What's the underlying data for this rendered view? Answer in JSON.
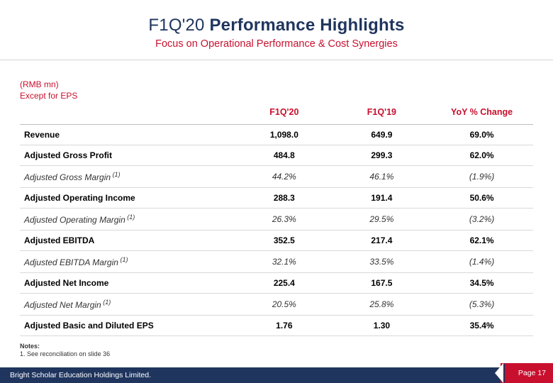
{
  "title": {
    "prefix": "F1Q'20 ",
    "main": "Performance Highlights"
  },
  "subtitle": "Focus on Operational Performance & Cost Synergies",
  "unit": {
    "line1": "(RMB mn)",
    "line2": "Except for EPS"
  },
  "columns": {
    "c1": "F1Q'20",
    "c2": "F1Q'19",
    "c3": "YoY % Change"
  },
  "rows": [
    {
      "style": "bold",
      "label": "Revenue",
      "v1": "1,098.0",
      "v2": "649.9",
      "v3": "69.0%"
    },
    {
      "style": "bold",
      "label": "Adjusted Gross Profit",
      "v1": "484.8",
      "v2": "299.3",
      "v3": "62.0%"
    },
    {
      "style": "ital",
      "label": "Adjusted Gross Margin",
      "sup": "(1)",
      "v1": "44.2%",
      "v2": "46.1%",
      "v3": "(1.9%)"
    },
    {
      "style": "bold",
      "label": "Adjusted Operating Income",
      "v1": "288.3",
      "v2": "191.4",
      "v3": "50.6%"
    },
    {
      "style": "ital",
      "label": "Adjusted Operating Margin",
      "sup": "(1)",
      "v1": "26.3%",
      "v2": "29.5%",
      "v3": "(3.2%)"
    },
    {
      "style": "bold",
      "label": "Adjusted EBITDA",
      "v1": "352.5",
      "v2": "217.4",
      "v3": "62.1%"
    },
    {
      "style": "ital",
      "label": "Adjusted EBITDA Margin",
      "sup": "(1)",
      "v1": "32.1%",
      "v2": "33.5%",
      "v3": "(1.4%)"
    },
    {
      "style": "bold",
      "label": "Adjusted Net Income",
      "v1": "225.4",
      "v2": "167.5",
      "v3": "34.5%"
    },
    {
      "style": "ital",
      "label": "Adjusted Net Margin",
      "sup": "(1)",
      "v1": "20.5%",
      "v2": "25.8%",
      "v3": "(5.3%)"
    },
    {
      "style": "bold",
      "label": "Adjusted Basic and Diluted EPS",
      "v1": "1.76",
      "v2": "1.30",
      "v3": "35.4%"
    }
  ],
  "notes": {
    "header": "Notes:",
    "item1": "1.   See reconciliation on slide 36"
  },
  "footer": {
    "company": "Bright Scholar Education Holdings Limited.",
    "page": "Page 17"
  }
}
